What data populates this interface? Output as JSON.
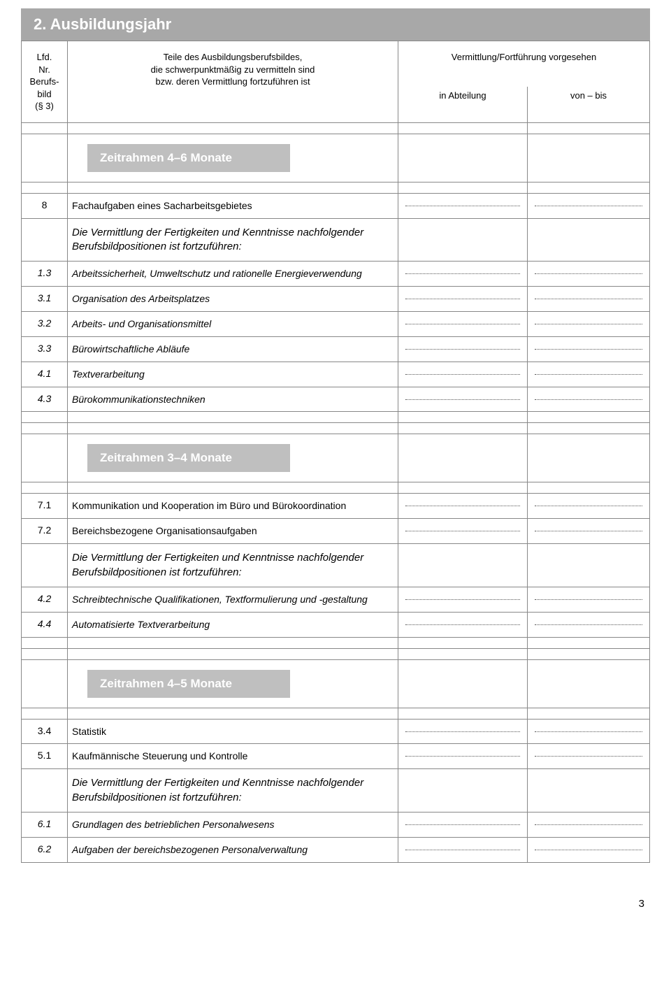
{
  "title": "2. Ausbildungsjahr",
  "header": {
    "col1_l1": "Lfd.",
    "col1_l2": "Nr.",
    "col1_l3": "Berufs-",
    "col1_l4": "bild",
    "col1_l5": "(§ 3)",
    "col2_l1": "Teile des Ausbildungsberufsbildes,",
    "col2_l2": "die schwerpunktmäßig zu vermitteln sind",
    "col2_l3": "bzw. deren Vermittlung fortzuführen ist",
    "col34_top": "Vermittlung/Fortführung vorgesehen",
    "col3_bot": "in Abteilung",
    "col4_bot": "von – bis"
  },
  "note_text": "Die Vermittlung der Fertigkeiten und Kenntnisse nachfolgender Berufsbildpositionen ist fortzuführen:",
  "sections": [
    {
      "timeframe": "Zeitrahmen 4–6 Monate",
      "pre_rows": [
        {
          "nr": "8",
          "text": "Fachaufgaben eines Sacharbeitsgebietes",
          "italic": false,
          "dots": true
        }
      ],
      "has_note": true,
      "post_rows": [
        {
          "nr": "1.3",
          "text": "Arbeitssicherheit, Umweltschutz und rationelle Energieverwendung",
          "italic": true,
          "dots": true
        },
        {
          "nr": "3.1",
          "text": "Organisation des Arbeitsplatzes",
          "italic": true,
          "dots": true
        },
        {
          "nr": "3.2",
          "text": "Arbeits- und Organisationsmittel",
          "italic": true,
          "dots": true
        },
        {
          "nr": "3.3",
          "text": "Bürowirtschaftliche Abläufe",
          "italic": true,
          "dots": true
        },
        {
          "nr": "4.1",
          "text": "Textverarbeitung",
          "italic": true,
          "dots": true
        },
        {
          "nr": "4.3",
          "text": "Bürokommunikationstechniken",
          "italic": true,
          "dots": true
        }
      ]
    },
    {
      "timeframe": "Zeitrahmen 3–4 Monate",
      "pre_rows": [
        {
          "nr": "7.1",
          "text": "Kommunikation und Kooperation im Büro und Bürokoordination",
          "italic": false,
          "dots": true
        },
        {
          "nr": "7.2",
          "text": "Bereichsbezogene Organisationsaufgaben",
          "italic": false,
          "dots": true
        }
      ],
      "has_note": true,
      "post_rows": [
        {
          "nr": "4.2",
          "text": "Schreibtechnische Qualifikationen, Textformulierung und -gestaltung",
          "italic": true,
          "dots": true
        },
        {
          "nr": "4.4",
          "text": "Automatisierte Textverarbeitung",
          "italic": true,
          "dots": true
        }
      ]
    },
    {
      "timeframe": "Zeitrahmen 4–5 Monate",
      "pre_rows": [
        {
          "nr": "3.4",
          "text": "Statistik",
          "italic": false,
          "dots": true
        },
        {
          "nr": "5.1",
          "text": "Kaufmännische Steuerung und Kontrolle",
          "italic": false,
          "dots": true
        }
      ],
      "has_note": true,
      "post_rows": [
        {
          "nr": "6.1",
          "text": "Grundlagen des betrieblichen Personalwesens",
          "italic": true,
          "dots": true
        },
        {
          "nr": "6.2",
          "text": "Aufgaben der bereichsbezogenen Personalverwaltung",
          "italic": true,
          "dots": true
        }
      ]
    }
  ],
  "page_number": "3"
}
